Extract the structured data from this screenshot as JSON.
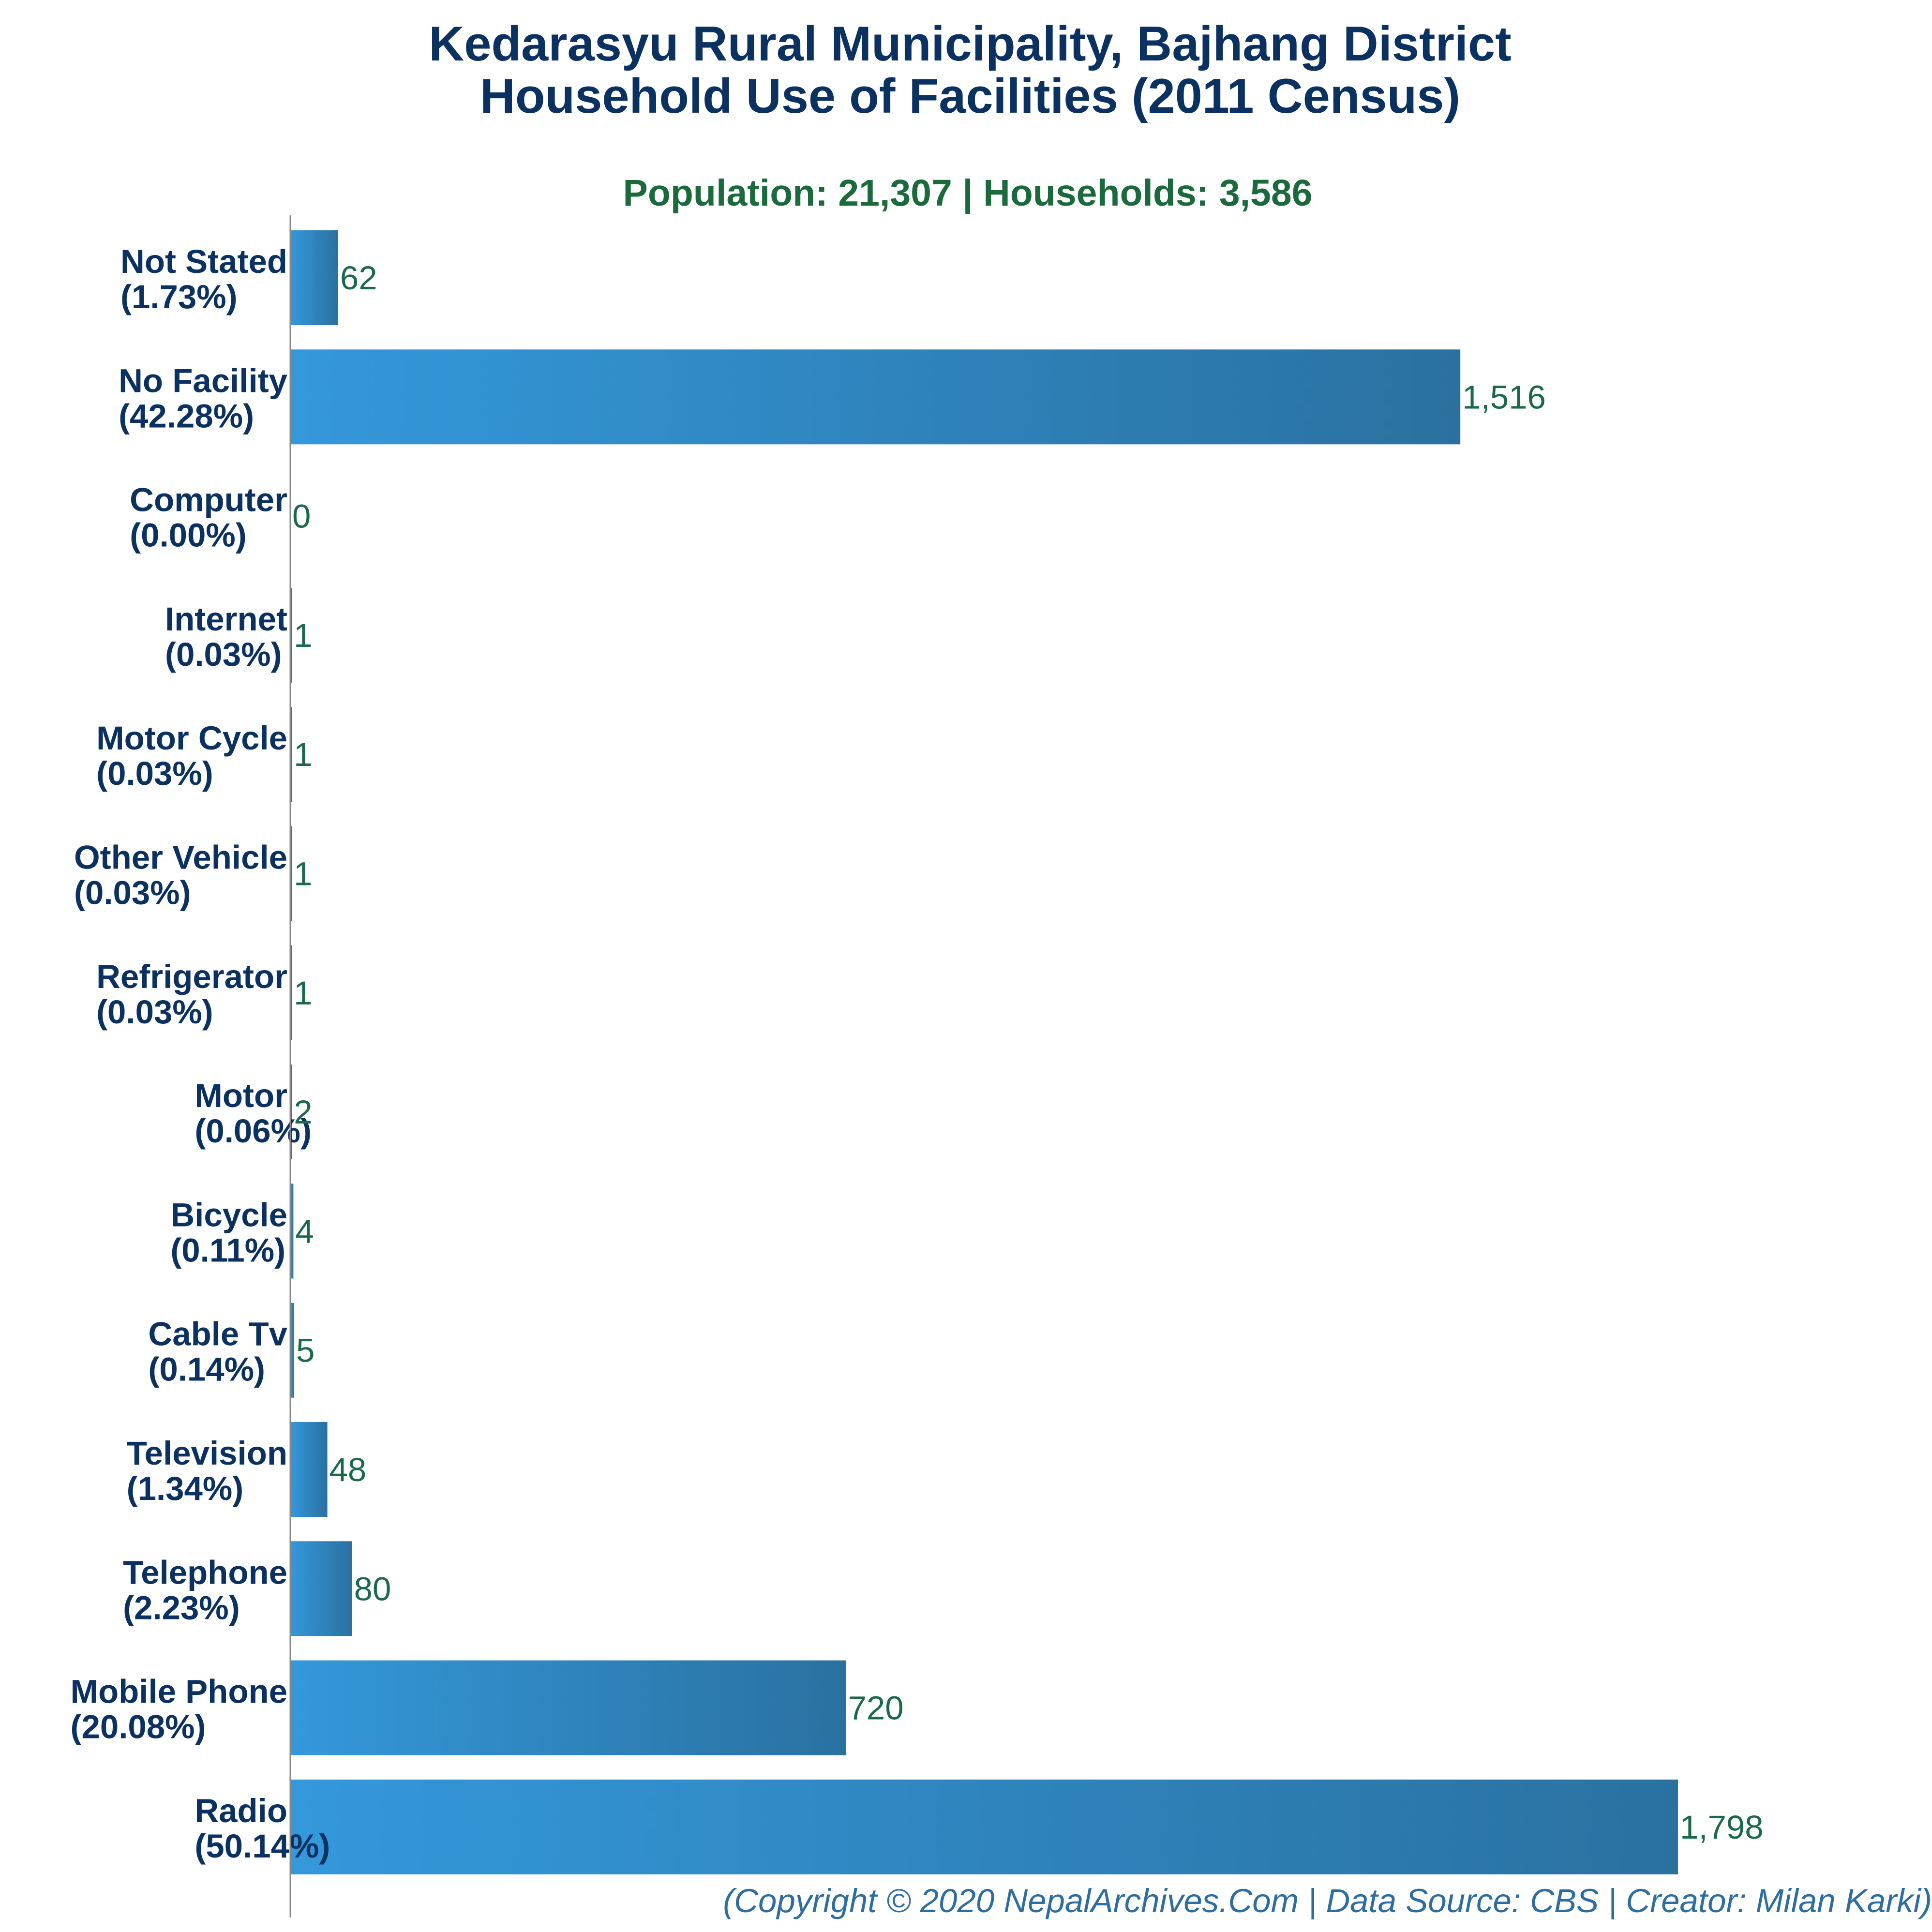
{
  "chart_data": {
    "type": "bar",
    "orientation": "horizontal",
    "title_lines": [
      "Kedarasyu Rural Municipality, Bajhang District",
      "Household Use of Facilities (2011 Census)"
    ],
    "subtitle": "Population: 21,307 | Households: 3,586",
    "categories": [
      "Not Stated",
      "No Facility",
      "Computer",
      "Internet",
      "Motor Cycle",
      "Other Vehicle",
      "Refrigerator",
      "Motor",
      "Bicycle",
      "Cable Tv",
      "Television",
      "Telephone",
      "Mobile Phone",
      "Radio"
    ],
    "percent_labels": [
      "(1.73%)",
      "(42.28%)",
      "(0.00%)",
      "(0.03%)",
      "(0.03%)",
      "(0.03%)",
      "(0.03%)",
      "(0.06%)",
      "(0.11%)",
      "(0.14%)",
      "(1.34%)",
      "(2.23%)",
      "(20.08%)",
      "(50.14%)"
    ],
    "values": [
      62,
      1516,
      0,
      1,
      1,
      1,
      1,
      2,
      4,
      5,
      48,
      80,
      720,
      1798
    ],
    "value_labels": [
      "62",
      "1,516",
      "0",
      "1",
      "1",
      "1",
      "1",
      "2",
      "4",
      "5",
      "48",
      "80",
      "720",
      "1,798"
    ],
    "xlabel": "",
    "ylabel": "",
    "grid": false,
    "legend": "none",
    "colors": {
      "bar_gradient_start": "#3498db",
      "bar_gradient_end": "#2a71a0",
      "title": "#0b3161",
      "subtitle": "#1a6a3b",
      "value_label": "#1a6a4a",
      "footer": "#2e6da0",
      "axis": "#888888"
    }
  },
  "footer": "(Copyright © 2020 NepalArchives.Com | Data Source: CBS | Creator: Milan Karki)"
}
